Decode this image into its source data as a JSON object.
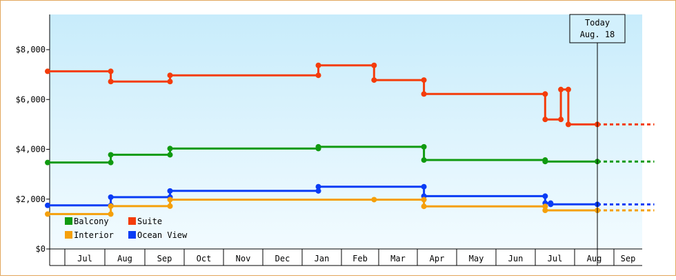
{
  "chart_data": {
    "type": "line",
    "step": true,
    "ylim": [
      0,
      9500
    ],
    "yticks": [
      {
        "value": 0,
        "label": "$0"
      },
      {
        "value": 2000,
        "label": "$2,000"
      },
      {
        "value": 4000,
        "label": "$4,000"
      },
      {
        "value": 6000,
        "label": "$6,000"
      },
      {
        "value": 8000,
        "label": "$8,000"
      }
    ],
    "x_range": [
      2.54,
      18.0
    ],
    "months": [
      {
        "label": "Jul",
        "index": 7
      },
      {
        "label": "Aug",
        "index": 8
      },
      {
        "label": "Sep",
        "index": 9
      },
      {
        "label": "Oct",
        "index": 10
      },
      {
        "label": "Nov",
        "index": 11
      },
      {
        "label": "Dec",
        "index": 12
      },
      {
        "label": "Jan",
        "index": 13
      },
      {
        "label": "Feb",
        "index": 14
      },
      {
        "label": "Mar",
        "index": 15
      },
      {
        "label": "Apr",
        "index": 16
      },
      {
        "label": "May",
        "index": 17
      },
      {
        "label": "Jun",
        "index": 18
      },
      {
        "label": "Jul",
        "index": 19
      },
      {
        "label": "Aug",
        "index": 20
      },
      {
        "label": "Sep",
        "index": 21
      }
    ],
    "today": {
      "label_line1": "Today",
      "label_line2": "Aug. 18",
      "x": 16.55
    },
    "projection_end_x": 18.0,
    "legend": [
      {
        "name": "Balcony",
        "color": "#109a10"
      },
      {
        "name": "Suite",
        "color": "#f43c0a"
      },
      {
        "name": "Interior",
        "color": "#f5a00a"
      },
      {
        "name": "Ocean View",
        "color": "#0a3cf5"
      }
    ],
    "series": [
      {
        "name": "Suite",
        "color": "#f43c0a",
        "points": [
          [
            2.54,
            7130
          ],
          [
            4.15,
            7130
          ],
          [
            4.15,
            6720
          ],
          [
            5.66,
            6720
          ],
          [
            5.66,
            6970
          ],
          [
            9.44,
            6970
          ],
          [
            9.44,
            7370
          ],
          [
            10.86,
            7370
          ],
          [
            10.86,
            6780
          ],
          [
            12.13,
            6780
          ],
          [
            12.13,
            6220
          ],
          [
            15.22,
            6220
          ],
          [
            15.22,
            5200
          ],
          [
            15.62,
            5200
          ],
          [
            15.62,
            6400
          ],
          [
            15.81,
            6400
          ],
          [
            15.81,
            5000
          ],
          [
            16.55,
            5000
          ]
        ]
      },
      {
        "name": "Balcony",
        "color": "#109a10",
        "points": [
          [
            2.54,
            3470
          ],
          [
            4.15,
            3470
          ],
          [
            4.15,
            3780
          ],
          [
            5.66,
            3780
          ],
          [
            5.66,
            4030
          ],
          [
            9.44,
            4030
          ],
          [
            9.44,
            4100
          ],
          [
            12.13,
            4100
          ],
          [
            12.13,
            3570
          ],
          [
            15.22,
            3570
          ],
          [
            15.22,
            3510
          ],
          [
            16.55,
            3510
          ]
        ]
      },
      {
        "name": "Ocean View",
        "color": "#0a3cf5",
        "points": [
          [
            2.54,
            1750
          ],
          [
            4.15,
            1750
          ],
          [
            4.15,
            2080
          ],
          [
            5.66,
            2080
          ],
          [
            5.66,
            2330
          ],
          [
            9.44,
            2330
          ],
          [
            9.44,
            2500
          ],
          [
            12.13,
            2500
          ],
          [
            12.13,
            2120
          ],
          [
            15.22,
            2120
          ],
          [
            15.22,
            1840
          ],
          [
            15.36,
            1840
          ],
          [
            15.36,
            1790
          ],
          [
            16.55,
            1790
          ]
        ]
      },
      {
        "name": "Interior",
        "color": "#f5a00a",
        "points": [
          [
            2.54,
            1400
          ],
          [
            4.15,
            1400
          ],
          [
            4.15,
            1720
          ],
          [
            5.66,
            1720
          ],
          [
            5.66,
            1980
          ],
          [
            10.86,
            1980
          ],
          [
            12.13,
            1980
          ],
          [
            12.13,
            1710
          ],
          [
            15.22,
            1710
          ],
          [
            15.22,
            1550
          ],
          [
            16.55,
            1550
          ]
        ]
      }
    ]
  }
}
